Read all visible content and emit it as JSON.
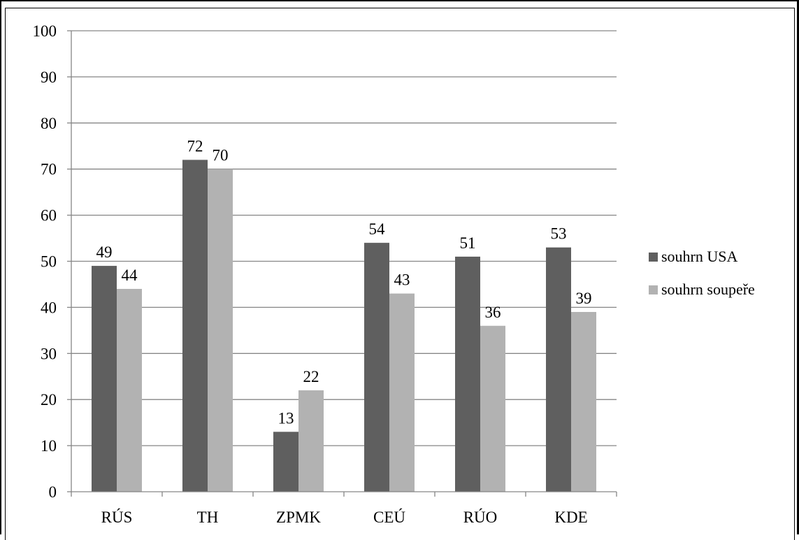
{
  "chart_data": {
    "type": "bar",
    "categories": [
      "RÚS",
      "TH",
      "ZPMK",
      "CEÚ",
      "RÚO",
      "KDE"
    ],
    "series": [
      {
        "name": "souhrn USA",
        "values": [
          49,
          72,
          13,
          54,
          51,
          53
        ],
        "color": "#5f5f5f"
      },
      {
        "name": "souhrn soupeře",
        "values": [
          44,
          70,
          22,
          43,
          36,
          39
        ],
        "color": "#b2b2b2"
      }
    ],
    "title": "",
    "xlabel": "",
    "ylabel": "",
    "ylim": [
      0,
      100
    ],
    "yticks": [
      "0",
      "10",
      "20",
      "30",
      "40",
      "50",
      "60",
      "70",
      "80",
      "90",
      "100"
    ],
    "grid": true,
    "legend_position": "right",
    "data_labels": true
  }
}
